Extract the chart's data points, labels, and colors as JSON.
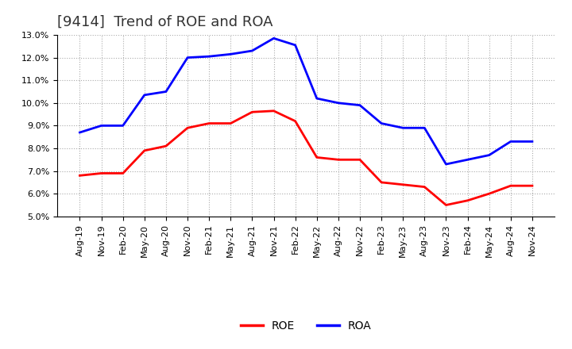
{
  "title": "[9414]  Trend of ROE and ROA",
  "x_labels": [
    "Aug-19",
    "Nov-19",
    "Feb-20",
    "May-20",
    "Aug-20",
    "Nov-20",
    "Feb-21",
    "May-21",
    "Aug-21",
    "Nov-21",
    "Feb-22",
    "May-22",
    "Aug-22",
    "Nov-22",
    "Feb-23",
    "May-23",
    "Aug-23",
    "Nov-23",
    "Feb-24",
    "May-24",
    "Aug-24",
    "Nov-24"
  ],
  "roe": [
    6.8,
    6.9,
    6.9,
    7.9,
    8.1,
    8.9,
    9.1,
    9.1,
    9.6,
    9.65,
    9.2,
    7.6,
    7.5,
    7.5,
    6.5,
    6.4,
    6.3,
    5.5,
    5.7,
    6.0,
    6.35,
    6.35
  ],
  "roa": [
    8.7,
    9.0,
    9.0,
    10.35,
    10.5,
    12.0,
    12.05,
    12.15,
    12.3,
    12.85,
    12.55,
    10.2,
    10.0,
    9.9,
    9.1,
    8.9,
    8.9,
    7.3,
    7.5,
    7.7,
    8.3,
    8.3
  ],
  "roe_color": "#FF0000",
  "roa_color": "#0000FF",
  "ylim": [
    5.0,
    13.0
  ],
  "yticks": [
    5.0,
    6.0,
    7.0,
    8.0,
    9.0,
    10.0,
    11.0,
    12.0,
    13.0
  ],
  "background_color": "#FFFFFF",
  "grid_color": "#AAAAAA",
  "title_fontsize": 13,
  "tick_fontsize": 8,
  "legend_labels": [
    "ROE",
    "ROA"
  ],
  "line_width": 2.0,
  "legend_fontsize": 10
}
